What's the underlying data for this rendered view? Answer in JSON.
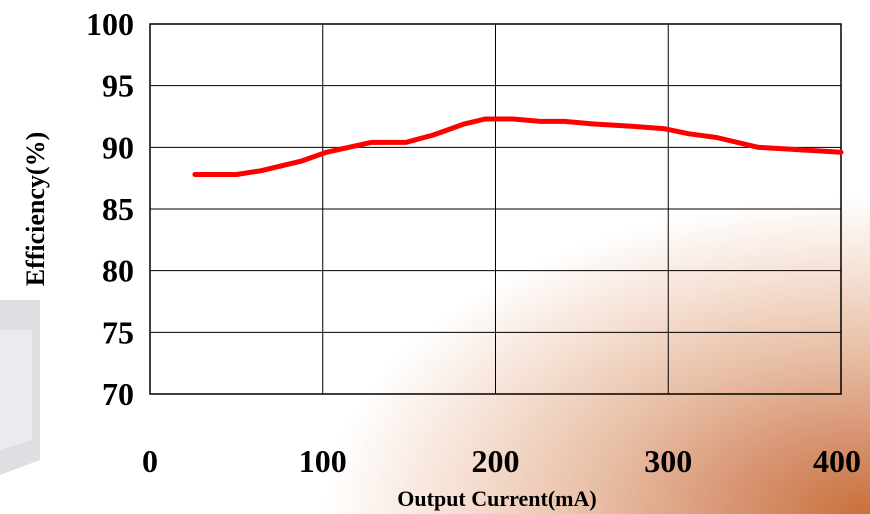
{
  "chart_data": {
    "type": "line",
    "title": "",
    "xlabel": "Output Current(mA)",
    "ylabel": "Efficiency(%)",
    "xlim": [
      0,
      400
    ],
    "ylim": [
      70,
      100
    ],
    "xticks": [
      0,
      100,
      200,
      300,
      400
    ],
    "yticks": [
      70,
      75,
      80,
      85,
      90,
      95,
      100
    ],
    "x_tick_labels": [
      "0",
      "100",
      "200",
      "300",
      "400"
    ],
    "y_tick_labels": [
      "70",
      "75",
      "80",
      "85",
      "90",
      "95",
      "100"
    ],
    "grid": true,
    "legend": "none",
    "series": [
      {
        "color": "#ff0000",
        "x": [
          26,
          50,
          64,
          88,
          102,
          128,
          148,
          164,
          182,
          194,
          210,
          226,
          240,
          256,
          280,
          298,
          312,
          328,
          352,
          376,
          400
        ],
        "y": [
          87.8,
          87.8,
          88.1,
          88.9,
          89.6,
          90.4,
          90.4,
          91.0,
          91.9,
          92.3,
          92.3,
          92.1,
          92.1,
          91.9,
          91.7,
          91.5,
          91.1,
          90.8,
          90.0,
          89.8,
          89.6
        ]
      }
    ]
  }
}
